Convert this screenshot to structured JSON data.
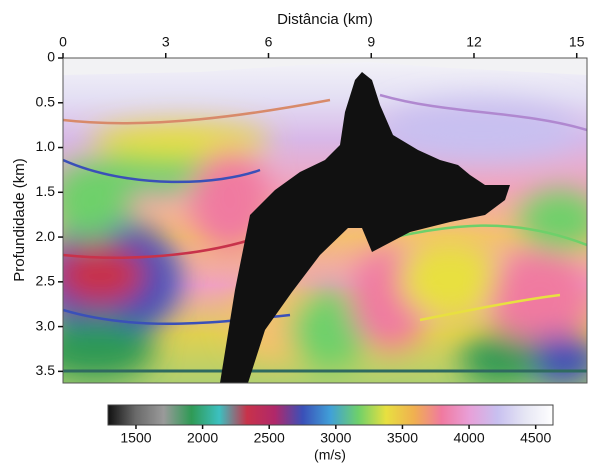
{
  "chart_data": {
    "type": "image",
    "x_label": "Distância (km)",
    "y_label": "Profundidade (km)",
    "xlim": [
      0,
      15.3
    ],
    "xticks": [
      0,
      3,
      6,
      9,
      12,
      15
    ],
    "ylim": [
      0,
      3.63
    ],
    "y_inverted": true,
    "yticks": [
      0,
      0.5,
      {
        "value": 1,
        "label": "1.0"
      },
      1.5,
      {
        "value": 2,
        "label": "2.0"
      },
      2.5,
      {
        "value": 3,
        "label": "3.0"
      },
      3.5
    ],
    "colorbar": {
      "label": "(m/s)",
      "clim": [
        1290,
        4630
      ],
      "ticks": [
        1500,
        2000,
        2500,
        3000,
        3500,
        4000,
        4500
      ],
      "colormap": [
        "#111111",
        "#6a6a6a",
        "#9a9a9a",
        "#2f9a55",
        "#3cc0c0",
        "#c8324a",
        "#b0286a",
        "#3a50b8",
        "#40a0d8",
        "#6ed06a",
        "#e8e040",
        "#f0b050",
        "#f07aa0",
        "#e8a0d8",
        "#c8c0f0",
        "#e6e6f4",
        "#ffffff"
      ]
    }
  }
}
